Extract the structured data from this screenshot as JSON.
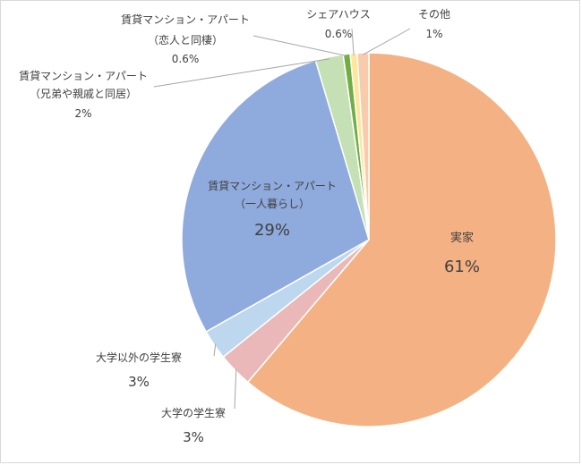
{
  "chart_data": {
    "type": "pie",
    "start_angle_deg": 0,
    "direction": "clockwise",
    "slices": [
      {
        "label_lines": [
          "実家"
        ],
        "value_label": "61%",
        "value": 61.2,
        "color": "#f4b183"
      },
      {
        "label_lines": [
          "大学の学生寮"
        ],
        "value_label": "3%",
        "value": 3.0,
        "color": "#eab8b8"
      },
      {
        "label_lines": [
          "大学以外の学生寮"
        ],
        "value_label": "3%",
        "value": 2.6,
        "color": "#bdd7ee"
      },
      {
        "label_lines": [
          "賃貸マンション・アパート",
          "（一人暮らし）"
        ],
        "value_label": "29%",
        "value": 28.6,
        "color": "#8faadc"
      },
      {
        "label_lines": [
          "賃貸マンション・アパート",
          "（兄弟や親戚と同居）"
        ],
        "value_label": "2%",
        "value": 2.4,
        "color": "#c5e0b4"
      },
      {
        "label_lines": [
          "賃貸マンション・アパート",
          "（恋人と同棲）"
        ],
        "value_label": "0.6%",
        "value": 0.6,
        "color": "#70ad47"
      },
      {
        "label_lines": [
          "シェアハウス"
        ],
        "value_label": "0.6%",
        "value": 0.6,
        "color": "#ffe699"
      },
      {
        "label_lines": [
          "その他"
        ],
        "value_label": "1%",
        "value": 1.0,
        "color": "#f8cbad"
      }
    ]
  }
}
